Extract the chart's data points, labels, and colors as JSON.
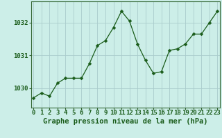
{
  "x": [
    0,
    1,
    2,
    3,
    4,
    5,
    6,
    7,
    8,
    9,
    10,
    11,
    12,
    13,
    14,
    15,
    16,
    17,
    18,
    19,
    20,
    21,
    22,
    23
  ],
  "y": [
    1029.7,
    1029.85,
    1029.75,
    1030.15,
    1030.3,
    1030.3,
    1030.3,
    1030.75,
    1031.3,
    1031.45,
    1031.85,
    1032.35,
    1032.05,
    1031.35,
    1030.85,
    1030.45,
    1030.5,
    1031.15,
    1031.2,
    1031.35,
    1031.65,
    1031.65,
    1032.0,
    1032.35
  ],
  "line_color": "#1a5c1a",
  "marker": "D",
  "marker_size": 2.5,
  "bg_color": "#cceee8",
  "grid_color": "#aacccc",
  "axis_bg": "#cceee8",
  "xlabel": "Graphe pression niveau de la mer (hPa)",
  "xlabel_fontsize": 7.5,
  "tick_fontsize": 6.5,
  "ylim": [
    1029.4,
    1032.65
  ],
  "yticks": [
    1030,
    1031,
    1032
  ],
  "xticks": [
    0,
    1,
    2,
    3,
    4,
    5,
    6,
    7,
    8,
    9,
    10,
    11,
    12,
    13,
    14,
    15,
    16,
    17,
    18,
    19,
    20,
    21,
    22,
    23
  ],
  "spine_color": "#336633",
  "label_color": "#1a5c1a"
}
